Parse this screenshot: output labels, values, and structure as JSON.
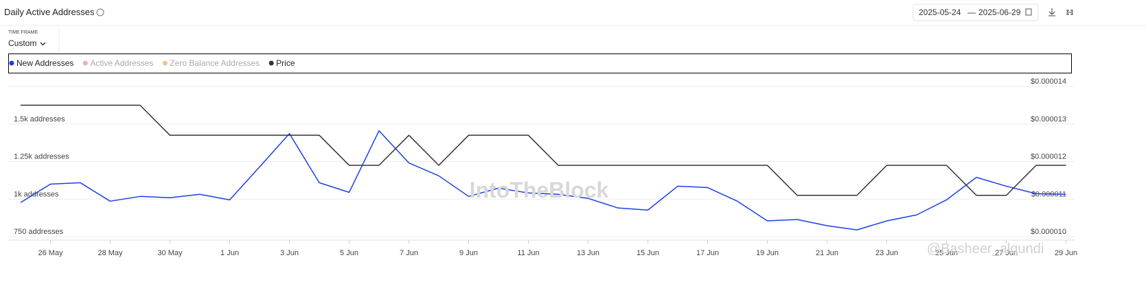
{
  "header": {
    "title": "Daily Active Addresses",
    "date_start": "2025-05-24",
    "date_separator": "—",
    "date_end": "2025-06-29",
    "time_frame_label": "TIME FRAME",
    "time_frame_value": "Custom"
  },
  "watermarks": [
    "IntoTheBlock",
    "@Basheer_alqundi"
  ],
  "chart_data": {
    "type": "line",
    "categories": [
      null,
      "26 May",
      null,
      "28 May",
      null,
      "30 May",
      null,
      "1 Jun",
      null,
      "3 Jun",
      null,
      "5 Jun",
      null,
      "7 Jun",
      null,
      "9 Jun",
      null,
      "11 Jun",
      null,
      "13 Jun",
      null,
      "15 Jun",
      null,
      "17 Jun",
      null,
      "19 Jun",
      null,
      "21 Jun",
      null,
      "23 Jun",
      null,
      "25 Jun",
      null,
      "27 Jun",
      null,
      "29 Jun"
    ],
    "series": [
      {
        "name": "New Addresses",
        "color": "#1a3ee8",
        "values": [
          977,
          1100,
          1109,
          986,
          1018,
          1009,
          1032,
          995,
          1214,
          1436,
          1109,
          1045,
          1455,
          1241,
          1155,
          1018,
          1073,
          1041,
          1032,
          1005,
          941,
          927,
          1086,
          1077,
          986,
          855,
          864,
          823,
          795,
          855,
          895,
          995,
          1145,
          1086,
          1036,
          1032
        ]
      },
      {
        "name": "Active Addresses",
        "color": "#f4a6d8",
        "hidden": true
      },
      {
        "name": "Zero Balance Addresses",
        "color": "#f5c08f",
        "hidden": true
      },
      {
        "name": "Price",
        "color": "#333333",
        "axis": "y2",
        "values": [
          1.35e-05,
          1.35e-05,
          1.35e-05,
          1.35e-05,
          1.35e-05,
          1.27e-05,
          1.27e-05,
          1.27e-05,
          1.27e-05,
          1.27e-05,
          1.27e-05,
          1.19e-05,
          1.19e-05,
          1.27e-05,
          1.19e-05,
          1.27e-05,
          1.27e-05,
          1.27e-05,
          1.19e-05,
          1.19e-05,
          1.19e-05,
          1.19e-05,
          1.19e-05,
          1.19e-05,
          1.19e-05,
          1.19e-05,
          1.11e-05,
          1.11e-05,
          1.11e-05,
          1.19e-05,
          1.19e-05,
          1.19e-05,
          1.11e-05,
          1.11e-05,
          1.19e-05,
          1.19e-05
        ]
      }
    ],
    "ylim": [
      750,
      1750
    ],
    "yticks": [
      {
        "value": 750,
        "label": "750 addresses"
      },
      {
        "value": 1000,
        "label": "1k addresses"
      },
      {
        "value": 1250,
        "label": "1.25k addresses"
      },
      {
        "value": 1500,
        "label": "1.5k addresses"
      }
    ],
    "y2lim": [
      1e-05,
      1.4e-05
    ],
    "y2ticks": [
      {
        "value": 1e-05,
        "label": "$0.000010"
      },
      {
        "value": 1.1e-05,
        "label": "$0.000011"
      },
      {
        "value": 1.2e-05,
        "label": "$0.000012"
      },
      {
        "value": 1.3e-05,
        "label": "$0.000013"
      },
      {
        "value": 1.4e-05,
        "label": "$0.000014"
      }
    ],
    "grid": true
  }
}
